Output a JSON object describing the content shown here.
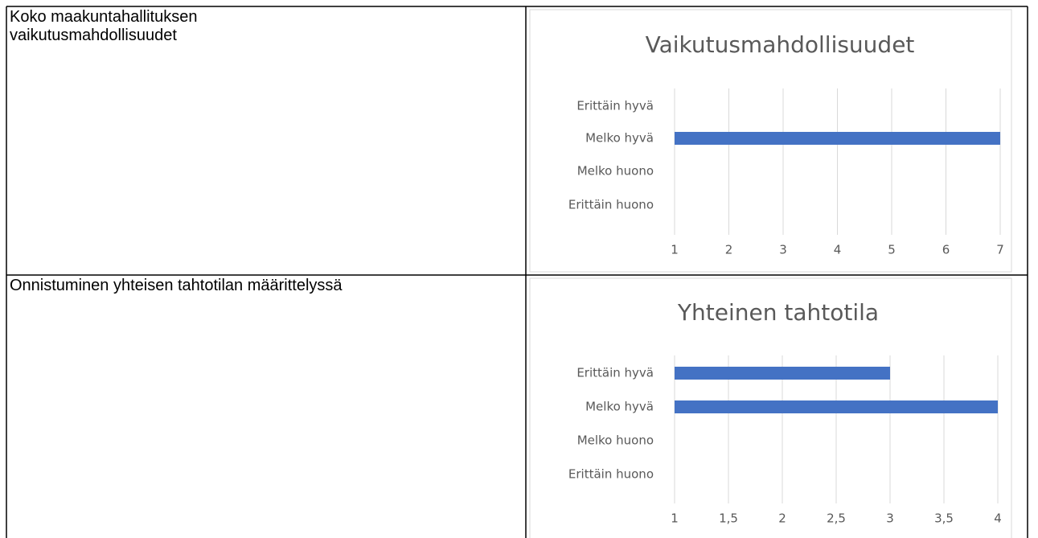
{
  "table": {
    "rows": [
      {
        "label": "Koko maakuntahallituksen\nvaikutusmahdollisuudet"
      },
      {
        "label": "Onnistuminen yhteisen tahtotilan määrittelyssä"
      }
    ]
  },
  "chart_data": [
    {
      "type": "hbar",
      "title": "Vaikutusmahdollisuudet",
      "categories": [
        "Erittäin hyvä",
        "Melko hyvä",
        "Melko huono",
        "Erittäin huono"
      ],
      "values": [
        null,
        7,
        null,
        null
      ],
      "color": "#4472c4",
      "xlim": [
        1,
        7
      ],
      "xticks": [
        1,
        2,
        3,
        4,
        5,
        6,
        7
      ],
      "grid": true
    },
    {
      "type": "hbar",
      "title": "Yhteinen tahtotila",
      "categories": [
        "Erittäin hyvä",
        "Melko hyvä",
        "Melko huono",
        "Erittäin huono"
      ],
      "values": [
        3,
        4,
        null,
        null
      ],
      "color": "#4472c4",
      "xlim": [
        1,
        4
      ],
      "xticks": [
        1,
        {
          "value": 1.5,
          "label": "1,5"
        },
        2,
        {
          "value": 2.5,
          "label": "2,5"
        },
        3,
        {
          "value": 3.5,
          "label": "3,5"
        },
        4
      ],
      "grid": true
    }
  ]
}
